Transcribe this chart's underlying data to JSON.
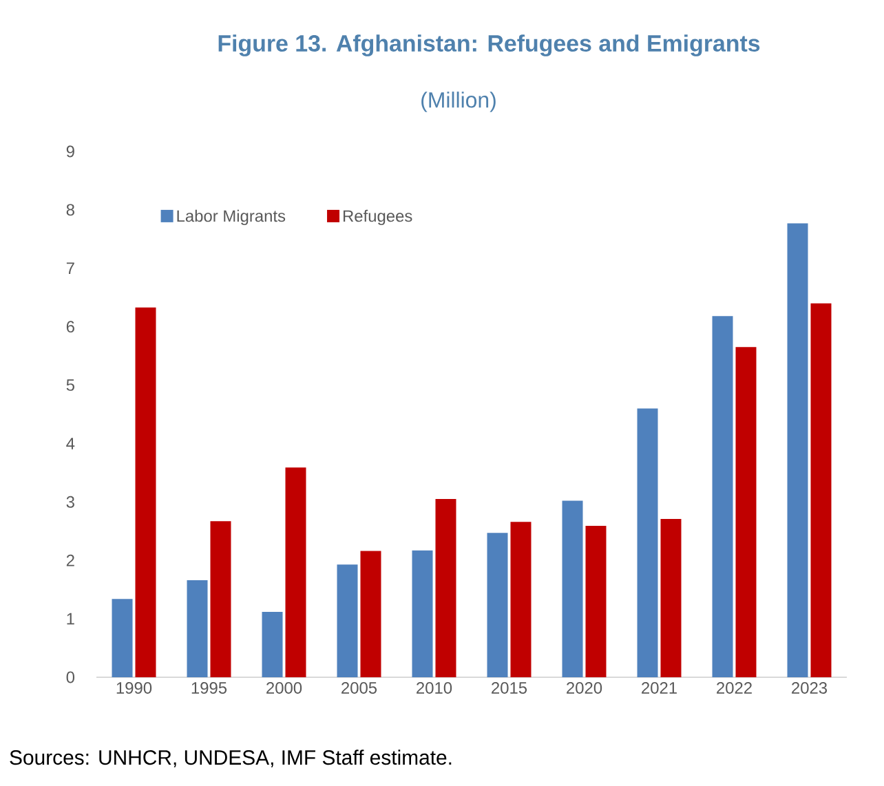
{
  "chart_data": {
    "type": "bar",
    "title": "Figure 13. Afghanistan: Refugees and Emigrants",
    "subtitle": "(Million)",
    "categories": [
      "1990",
      "1995",
      "2000",
      "2005",
      "2010",
      "2015",
      "2020",
      "2021",
      "2022",
      "2023"
    ],
    "series": [
      {
        "name": "Labor Migrants",
        "color": "#4f81bd",
        "values": [
          1.34,
          1.66,
          1.12,
          1.93,
          2.17,
          2.47,
          3.02,
          4.6,
          6.18,
          7.77
        ]
      },
      {
        "name": "Refugees",
        "color": "#c00000",
        "values": [
          6.33,
          2.67,
          3.59,
          2.16,
          3.05,
          2.66,
          2.59,
          2.71,
          5.65,
          6.4
        ]
      }
    ],
    "ylim": [
      0,
      9
    ],
    "yticks": [
      0,
      1,
      2,
      3,
      4,
      5,
      6,
      7,
      8,
      9
    ],
    "legend": "top left",
    "annotations": [
      "Sources: UNHCR, UNDESA, IMF Staff estimate."
    ]
  }
}
